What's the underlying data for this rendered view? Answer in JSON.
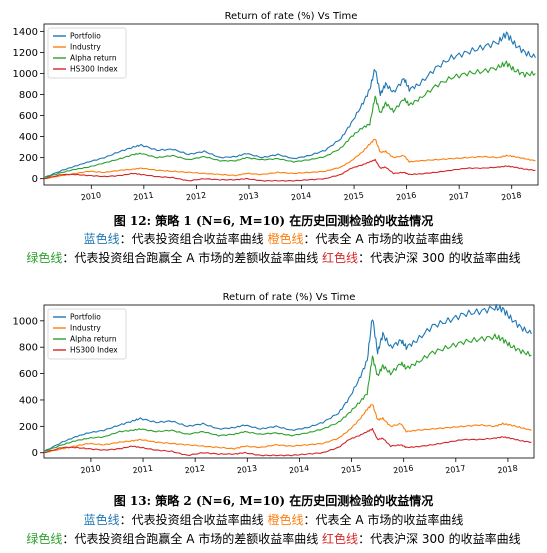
{
  "colors": {
    "portfolio": "#1f77b4",
    "industry": "#ff7f0e",
    "alpha": "#2ca02c",
    "hs300": "#d62728"
  },
  "figures": [
    {
      "caption": "图 12: 策略 1 (N=6, M=10) 在历史回测检验的收益情况",
      "note_line1": [
        {
          "text": "蓝色线",
          "color": "blue"
        },
        {
          "text": "：代表投资组合收益率曲线   ",
          "color": "black"
        },
        {
          "text": "橙色线",
          "color": "orange"
        },
        {
          "text": "：代表全 A 市场的收益率曲线",
          "color": "black"
        }
      ],
      "note_line2": [
        {
          "text": "绿色线",
          "color": "green"
        },
        {
          "text": "：代表投资组合跑赢全 A 市场的差额收益率曲线  ",
          "color": "black"
        },
        {
          "text": "红色线",
          "color": "red"
        },
        {
          "text": "：代表沪深 300 的收益率曲线",
          "color": "black"
        }
      ]
    },
    {
      "caption": "图 13: 策略 2 (N=6, M=10) 在历史回测检验的收益情况",
      "note_line1": [
        {
          "text": "蓝色线",
          "color": "blue"
        },
        {
          "text": "：代表投资组合收益率曲线   ",
          "color": "black"
        },
        {
          "text": "橙色线",
          "color": "orange"
        },
        {
          "text": "：代表全 A 市场的收益率曲线",
          "color": "black"
        }
      ],
      "note_line2": [
        {
          "text": "绿色线",
          "color": "green"
        },
        {
          "text": "：代表投资组合跑赢全 A 市场的差额收益率曲线  ",
          "color": "black"
        },
        {
          "text": "红色线",
          "color": "red"
        },
        {
          "text": "：代表沪深 300 的收益率曲线",
          "color": "black"
        }
      ]
    }
  ],
  "chart_data": [
    {
      "type": "line",
      "title": "Return of rate (%) Vs Time",
      "xlabel": "",
      "ylabel": "",
      "x_ticks": [
        "2010",
        "2011",
        "2012",
        "2013",
        "2014",
        "2015",
        "2016",
        "2017",
        "2018"
      ],
      "xlim": [
        2009.15,
        2018.55
      ],
      "ylim": [
        -60,
        1470
      ],
      "y_ticks": [
        0,
        200,
        400,
        600,
        800,
        1000,
        1200,
        1400
      ],
      "legend_position": "top-left",
      "grid": false,
      "x": [
        2009.15,
        2009.5,
        2009.75,
        2010.0,
        2010.3,
        2010.6,
        2010.85,
        2011.0,
        2011.3,
        2011.6,
        2011.9,
        2012.2,
        2012.5,
        2012.8,
        2013.0,
        2013.3,
        2013.6,
        2013.9,
        2014.2,
        2014.5,
        2014.8,
        2015.0,
        2015.2,
        2015.35,
        2015.45,
        2015.55,
        2015.65,
        2015.8,
        2016.0,
        2016.1,
        2016.3,
        2016.6,
        2016.9,
        2017.2,
        2017.5,
        2017.8,
        2017.95,
        2018.1,
        2018.3,
        2018.5
      ],
      "series": [
        {
          "name": "Portfolio",
          "color": "portfolio",
          "values": [
            10,
            80,
            120,
            160,
            200,
            260,
            300,
            320,
            270,
            280,
            230,
            260,
            200,
            210,
            240,
            200,
            230,
            190,
            220,
            270,
            380,
            530,
            700,
            850,
            1050,
            800,
            900,
            820,
            950,
            850,
            900,
            1050,
            1150,
            1200,
            1250,
            1300,
            1380,
            1280,
            1200,
            1150
          ]
        },
        {
          "name": "Industry",
          "color": "industry",
          "values": [
            0,
            30,
            50,
            70,
            60,
            80,
            90,
            100,
            80,
            70,
            60,
            50,
            40,
            30,
            50,
            40,
            60,
            50,
            60,
            70,
            110,
            170,
            250,
            330,
            380,
            250,
            260,
            200,
            220,
            160,
            170,
            180,
            190,
            200,
            210,
            200,
            220,
            210,
            190,
            170
          ]
        },
        {
          "name": "Alpha return",
          "color": "alpha",
          "values": [
            10,
            60,
            90,
            110,
            150,
            190,
            230,
            240,
            200,
            220,
            180,
            210,
            170,
            170,
            200,
            180,
            190,
            160,
            180,
            210,
            290,
            400,
            480,
            520,
            780,
            620,
            720,
            640,
            760,
            700,
            760,
            880,
            960,
            1000,
            1020,
            1060,
            1100,
            1030,
            990,
            1000
          ]
        },
        {
          "name": "HS300 Index",
          "color": "hs300",
          "values": [
            0,
            40,
            40,
            30,
            20,
            30,
            50,
            40,
            20,
            10,
            -20,
            0,
            -10,
            -10,
            0,
            -20,
            -20,
            -20,
            -10,
            0,
            40,
            100,
            130,
            160,
            180,
            100,
            110,
            50,
            60,
            40,
            45,
            60,
            80,
            100,
            100,
            110,
            120,
            110,
            90,
            80
          ]
        }
      ]
    },
    {
      "type": "line",
      "title": "Return of rate (%) Vs Time",
      "xlabel": "",
      "ylabel": "",
      "x_ticks": [
        "2010",
        "2011",
        "2012",
        "2013",
        "2014",
        "2015",
        "2016",
        "2017",
        "2018"
      ],
      "xlim": [
        2009.15,
        2018.55
      ],
      "ylim": [
        -40,
        1120
      ],
      "y_ticks": [
        0,
        200,
        400,
        600,
        800,
        1000
      ],
      "legend_position": "top-left",
      "grid": false,
      "x": [
        2009.15,
        2009.5,
        2009.75,
        2010.0,
        2010.3,
        2010.6,
        2010.85,
        2011.0,
        2011.3,
        2011.6,
        2011.9,
        2012.2,
        2012.5,
        2012.8,
        2013.0,
        2013.3,
        2013.6,
        2013.9,
        2014.2,
        2014.5,
        2014.8,
        2015.0,
        2015.2,
        2015.35,
        2015.45,
        2015.55,
        2015.65,
        2015.8,
        2016.0,
        2016.1,
        2016.3,
        2016.6,
        2016.9,
        2017.2,
        2017.5,
        2017.8,
        2017.95,
        2018.1,
        2018.3,
        2018.5
      ],
      "series": [
        {
          "name": "Portfolio",
          "color": "portfolio",
          "values": [
            10,
            80,
            120,
            150,
            170,
            210,
            240,
            260,
            230,
            240,
            200,
            220,
            180,
            190,
            210,
            180,
            200,
            170,
            190,
            230,
            300,
            410,
            560,
            700,
            1030,
            760,
            900,
            800,
            850,
            800,
            850,
            960,
            1000,
            1050,
            1070,
            1100,
            1090,
            1020,
            950,
            900
          ]
        },
        {
          "name": "Industry",
          "color": "industry",
          "values": [
            0,
            30,
            50,
            70,
            60,
            80,
            90,
            100,
            80,
            70,
            60,
            50,
            40,
            30,
            50,
            40,
            60,
            50,
            60,
            70,
            110,
            170,
            250,
            330,
            370,
            250,
            260,
            200,
            220,
            160,
            170,
            180,
            190,
            200,
            210,
            200,
            220,
            210,
            190,
            170
          ]
        },
        {
          "name": "Alpha return",
          "color": "alpha",
          "values": [
            10,
            60,
            90,
            110,
            120,
            160,
            170,
            180,
            160,
            170,
            140,
            160,
            130,
            140,
            160,
            140,
            150,
            130,
            150,
            180,
            230,
            300,
            380,
            450,
            730,
            580,
            660,
            600,
            680,
            640,
            680,
            760,
            800,
            840,
            860,
            880,
            860,
            810,
            770,
            740
          ]
        },
        {
          "name": "HS300 Index",
          "color": "hs300",
          "values": [
            0,
            40,
            40,
            30,
            20,
            30,
            50,
            40,
            20,
            10,
            -20,
            0,
            -10,
            -10,
            0,
            -20,
            -20,
            -20,
            -10,
            0,
            40,
            100,
            130,
            160,
            180,
            100,
            110,
            50,
            60,
            40,
            45,
            60,
            80,
            100,
            100,
            110,
            120,
            110,
            90,
            80
          ]
        }
      ]
    }
  ]
}
